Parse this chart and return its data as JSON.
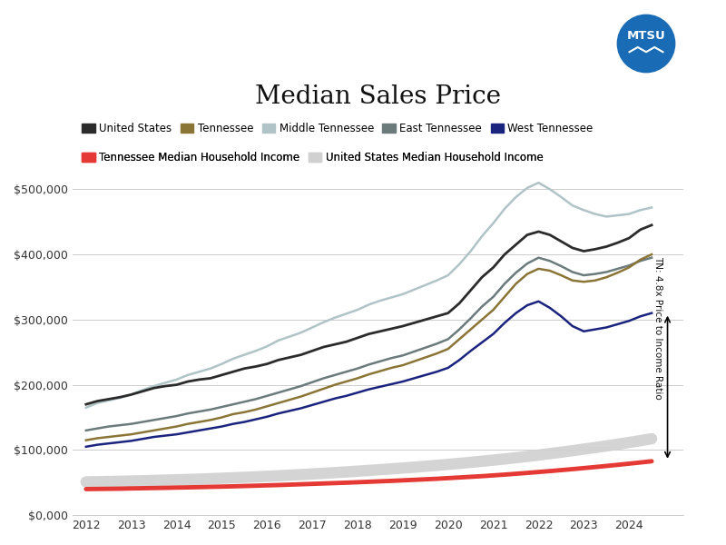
{
  "title": "Median Sales Price",
  "years": [
    2012,
    2012.25,
    2012.5,
    2012.75,
    2013,
    2013.25,
    2013.5,
    2013.75,
    2014,
    2014.25,
    2014.5,
    2014.75,
    2015,
    2015.25,
    2015.5,
    2015.75,
    2016,
    2016.25,
    2016.5,
    2016.75,
    2017,
    2017.25,
    2017.5,
    2017.75,
    2018,
    2018.25,
    2018.5,
    2018.75,
    2019,
    2019.25,
    2019.5,
    2019.75,
    2020,
    2020.25,
    2020.5,
    2020.75,
    2021,
    2021.25,
    2021.5,
    2021.75,
    2022,
    2022.25,
    2022.5,
    2022.75,
    2023,
    2023.25,
    2023.5,
    2023.75,
    2024,
    2024.25,
    2024.5
  ],
  "us_sales": [
    170000,
    175000,
    178000,
    181000,
    185000,
    190000,
    195000,
    198000,
    200000,
    205000,
    208000,
    210000,
    215000,
    220000,
    225000,
    228000,
    232000,
    238000,
    242000,
    246000,
    252000,
    258000,
    262000,
    266000,
    272000,
    278000,
    282000,
    286000,
    290000,
    295000,
    300000,
    305000,
    310000,
    325000,
    345000,
    365000,
    380000,
    400000,
    415000,
    430000,
    435000,
    430000,
    420000,
    410000,
    405000,
    408000,
    412000,
    418000,
    425000,
    438000,
    445000
  ],
  "tn_sales": [
    115000,
    118000,
    120000,
    122000,
    124000,
    127000,
    130000,
    133000,
    136000,
    140000,
    143000,
    146000,
    150000,
    155000,
    158000,
    162000,
    167000,
    172000,
    177000,
    182000,
    188000,
    194000,
    200000,
    205000,
    210000,
    216000,
    221000,
    226000,
    230000,
    236000,
    242000,
    248000,
    255000,
    270000,
    285000,
    300000,
    315000,
    335000,
    355000,
    370000,
    378000,
    375000,
    368000,
    360000,
    358000,
    360000,
    365000,
    372000,
    380000,
    392000,
    400000
  ],
  "middle_tn_sales": [
    165000,
    172000,
    176000,
    180000,
    185000,
    192000,
    198000,
    203000,
    208000,
    215000,
    220000,
    225000,
    232000,
    240000,
    246000,
    252000,
    259000,
    268000,
    274000,
    280000,
    288000,
    296000,
    303000,
    309000,
    315000,
    323000,
    329000,
    334000,
    339000,
    346000,
    353000,
    360000,
    368000,
    385000,
    405000,
    428000,
    448000,
    470000,
    488000,
    502000,
    510000,
    500000,
    488000,
    475000,
    468000,
    462000,
    458000,
    460000,
    462000,
    468000,
    472000
  ],
  "east_tn_sales": [
    130000,
    133000,
    136000,
    138000,
    140000,
    143000,
    146000,
    149000,
    152000,
    156000,
    159000,
    162000,
    166000,
    170000,
    174000,
    178000,
    183000,
    188000,
    193000,
    198000,
    204000,
    210000,
    215000,
    220000,
    225000,
    231000,
    236000,
    241000,
    245000,
    251000,
    257000,
    263000,
    270000,
    285000,
    302000,
    320000,
    335000,
    355000,
    372000,
    386000,
    395000,
    390000,
    382000,
    373000,
    368000,
    370000,
    373000,
    378000,
    383000,
    390000,
    395000
  ],
  "west_tn_sales": [
    105000,
    108000,
    110000,
    112000,
    114000,
    117000,
    120000,
    122000,
    124000,
    127000,
    130000,
    133000,
    136000,
    140000,
    143000,
    147000,
    151000,
    156000,
    160000,
    164000,
    169000,
    174000,
    179000,
    183000,
    188000,
    193000,
    197000,
    201000,
    205000,
    210000,
    215000,
    220000,
    226000,
    238000,
    252000,
    265000,
    278000,
    295000,
    310000,
    322000,
    328000,
    318000,
    305000,
    290000,
    282000,
    285000,
    288000,
    293000,
    298000,
    305000,
    310000
  ],
  "tn_income": [
    40000,
    40200,
    40400,
    40600,
    41000,
    41300,
    41600,
    41900,
    42300,
    42600,
    43000,
    43400,
    43800,
    44200,
    44700,
    45200,
    45700,
    46200,
    46800,
    47400,
    48000,
    48600,
    49200,
    49800,
    50500,
    51200,
    51900,
    52600,
    53400,
    54200,
    55000,
    55800,
    56800,
    57800,
    58800,
    59800,
    61000,
    62200,
    63500,
    64800,
    66200,
    67600,
    69100,
    70600,
    72200,
    73800,
    75500,
    77200,
    79000,
    80800,
    82700
  ],
  "us_income": [
    51000,
    51300,
    51600,
    51900,
    52300,
    52700,
    53200,
    53700,
    54200,
    54700,
    55300,
    55900,
    56600,
    57300,
    58000,
    58800,
    59600,
    60400,
    61300,
    62200,
    63200,
    64200,
    65200,
    66300,
    67400,
    68600,
    69800,
    71000,
    72300,
    73600,
    75000,
    76400,
    77900,
    79400,
    81000,
    82700,
    84400,
    86200,
    88100,
    90100,
    92200,
    94400,
    96600,
    98900,
    101300,
    103700,
    106200,
    108800,
    111500,
    114300,
    117200
  ],
  "colors": {
    "us_sales": "#2b2b2b",
    "tn_sales": "#8b7536",
    "middle_tn_sales": "#b0c4c8",
    "east_tn_sales": "#6b7b7b",
    "west_tn_sales": "#1a237e",
    "tn_income": "#e53935",
    "us_income": "#d0d0d0"
  },
  "ylim": [
    0,
    525000
  ],
  "yticks": [
    0,
    100000,
    200000,
    300000,
    400000,
    500000
  ],
  "xticks": [
    2012,
    2013,
    2014,
    2015,
    2016,
    2017,
    2018,
    2019,
    2020,
    2021,
    2022,
    2023,
    2024
  ],
  "annotation_text": "TN: 4.8x Price to Income Ratio",
  "background_color": "#ffffff",
  "logo_color": "#1a6bb5",
  "legend_row1": [
    "United States",
    "Tennessee",
    "Middle Tennessee",
    "East Tennessee",
    "West Tennessee"
  ],
  "legend_row2": [
    "Tennessee Median Household Income",
    "United States Median Household Income"
  ]
}
